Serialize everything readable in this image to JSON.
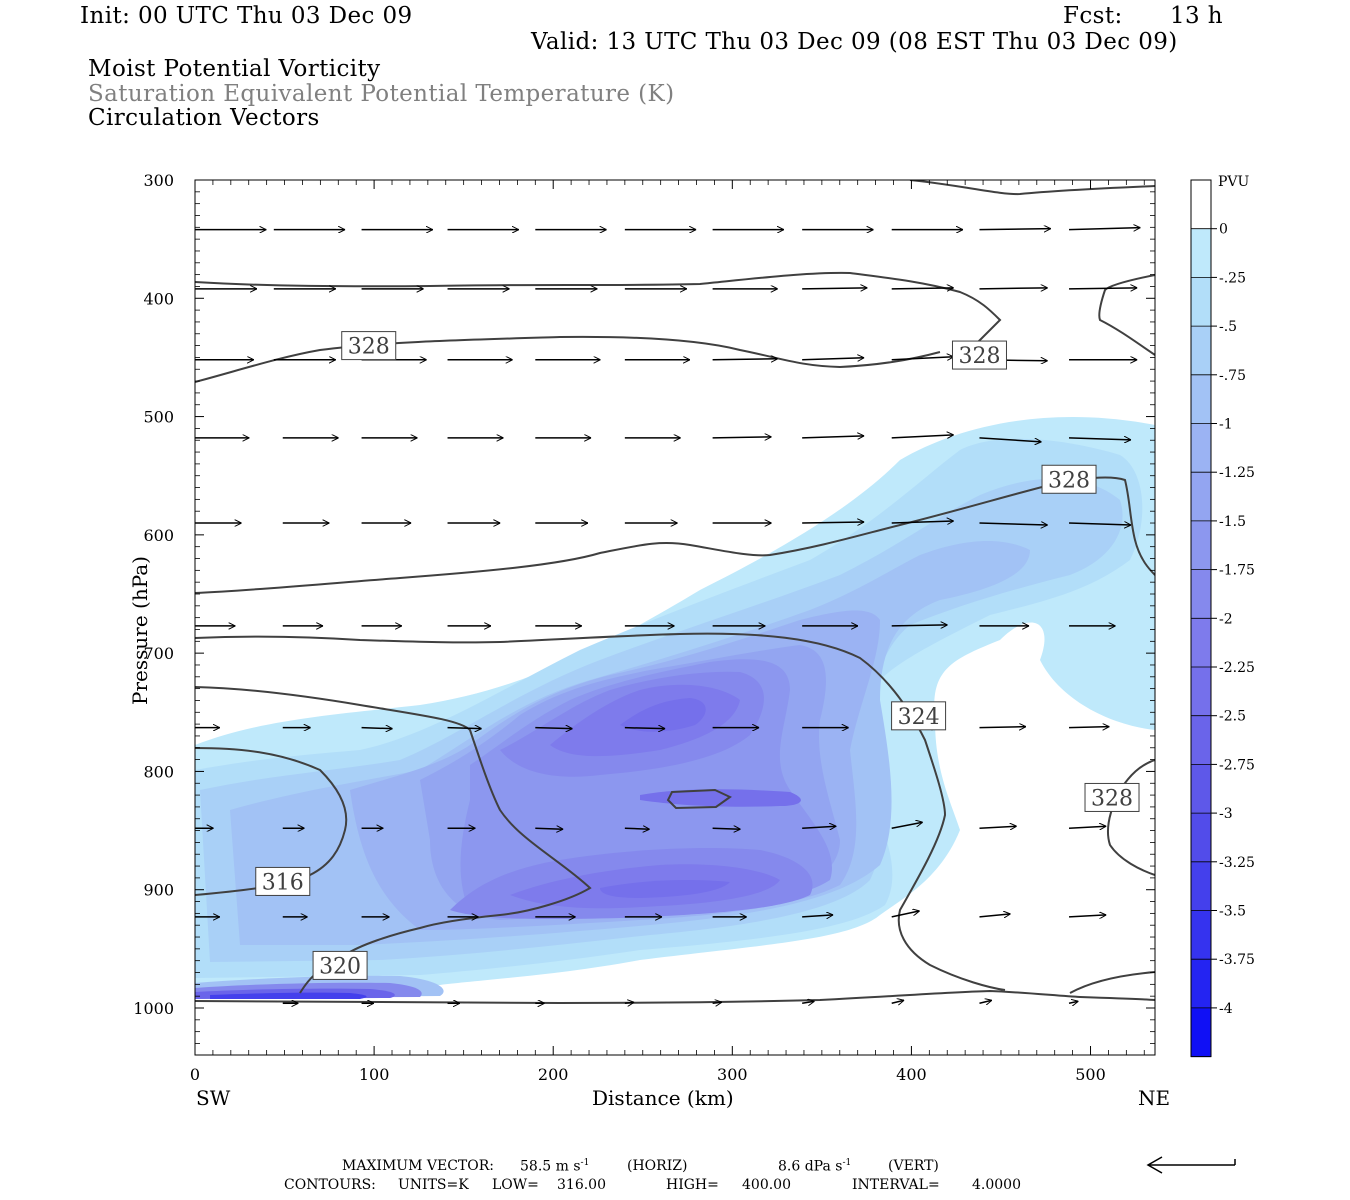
{
  "header": {
    "init": "Init: 00 UTC Thu 03 Dec 09",
    "fcst_label": "Fcst:",
    "fcst_value": "13 h",
    "valid": "Valid: 13 UTC Thu 03 Dec 09 (08 EST Thu 03 Dec 09)",
    "field1": "Moist Potential Vorticity",
    "field2": "Saturation Equivalent Potential Temperature (K)",
    "field3": "Circulation Vectors"
  },
  "footer": {
    "max_vector_label": "MAXIMUM VECTOR:",
    "max_horiz": "58.5 m s",
    "horiz_unit": "(HORIZ)",
    "max_vert": "8.6 dPa s",
    "vert_unit": "(VERT)",
    "contours_label": "CONTOURS:",
    "units": "UNITS=K",
    "low_label": "LOW=",
    "low": "316.00",
    "high_label": "HIGH=",
    "high": "400.00",
    "interval_label": "INTERVAL=",
    "interval": "4.0000"
  },
  "chart_data": {
    "type": "heatmap",
    "xlabel": "Distance (km)",
    "ylabel": "Pressure (hPa)",
    "x_ticks": [
      0,
      100,
      200,
      300,
      400,
      500
    ],
    "y_ticks": [
      300,
      400,
      500,
      600,
      700,
      800,
      900,
      1000
    ],
    "xlim": [
      0,
      536
    ],
    "ylim": [
      1040,
      300
    ],
    "x_left_label": "SW",
    "x_right_label": "NE",
    "colorbar": {
      "unit": "PVU",
      "levels": [
        "0",
        "-.25",
        "-.5",
        "-.75",
        "-1",
        "-1.25",
        "-1.5",
        "-1.75",
        "-2",
        "-2.25",
        "-2.5",
        "-2.75",
        "-3",
        "-3.25",
        "-3.5",
        "-3.75",
        "-4"
      ],
      "colors": [
        "#ffffff",
        "#bfe9fb",
        "#b2def9",
        "#a9d0f7",
        "#a2c2f5",
        "#9bb3f3",
        "#93a5f1",
        "#8c97ef",
        "#8589ed",
        "#7e7bec",
        "#7570eb",
        "#6a64ea",
        "#5e58e9",
        "#524cea",
        "#4440ec",
        "#3533ef",
        "#2424f2",
        "#1010f5"
      ]
    },
    "theta_e_contour_labels": [
      {
        "value": "328",
        "x": 97,
        "p": 440
      },
      {
        "value": "328",
        "x": 438,
        "p": 448
      },
      {
        "value": "328",
        "x": 488,
        "p": 553
      },
      {
        "value": "324",
        "x": 404,
        "p": 753
      },
      {
        "value": "328",
        "x": 512,
        "p": 822
      },
      {
        "value": "316",
        "x": 49,
        "p": 893
      },
      {
        "value": "320",
        "x": 81,
        "p": 964
      }
    ],
    "pv_minima": [
      {
        "x": 275,
        "p": 720,
        "value": -2.1
      },
      {
        "x": 275,
        "p": 898,
        "value": -2.2
      },
      {
        "x": 100,
        "p": 990,
        "value": -3.6
      }
    ],
    "max_vector": {
      "horiz": 58.5,
      "vert": 8.6
    }
  }
}
